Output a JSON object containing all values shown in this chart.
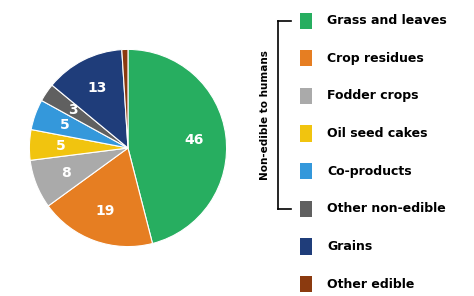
{
  "labels": [
    "Grass and leaves",
    "Crop residues",
    "Fodder crops",
    "Oil seed cakes",
    "Co-products",
    "Other non-edible",
    "Grains",
    "Other edible"
  ],
  "values": [
    46,
    19,
    8,
    5,
    5,
    3,
    13,
    1
  ],
  "colors": [
    "#27ae60",
    "#e67e22",
    "#aaaaaa",
    "#f1c40f",
    "#3498db",
    "#606060",
    "#1f3d7a",
    "#8B3A0F"
  ],
  "startangle": 90,
  "background_color": "#ffffff",
  "label_fontsize": 10,
  "legend_fontsize": 9,
  "bracket_items": 6
}
